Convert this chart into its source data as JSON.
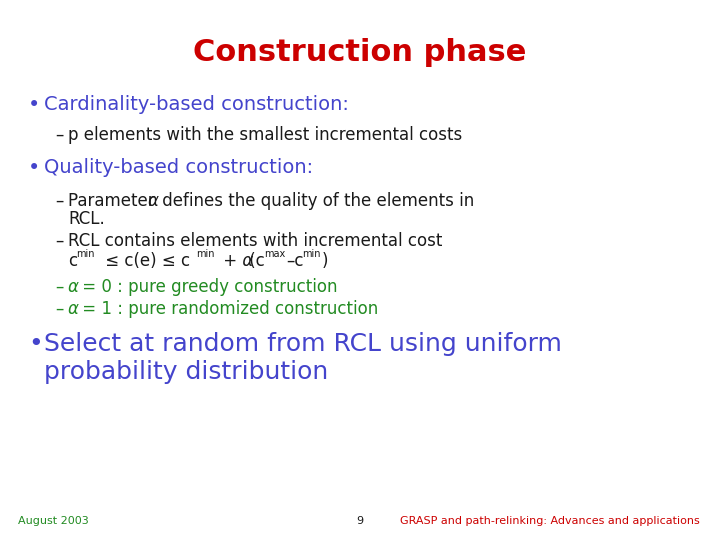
{
  "title": "Construction phase",
  "title_color": "#cc0000",
  "title_fontsize": 22,
  "background_color": "#ffffff",
  "bullet_color": "#4444cc",
  "subitem_color": "#1a1a1a",
  "green_color": "#228B22",
  "footer_color_left": "#228B22",
  "footer_color_right": "#cc0000",
  "bullet1": "Cardinality-based construction:",
  "sub1": "p elements with the smallest incremental costs",
  "bullet2": "Quality-based construction:",
  "bullet3_line1": "Select at random from RCL using uniform",
  "bullet3_line2": "probability distribution",
  "footer_left": "August 2003",
  "footer_center": "9",
  "footer_right": "GRASP and path-relinking: Advances and applications"
}
